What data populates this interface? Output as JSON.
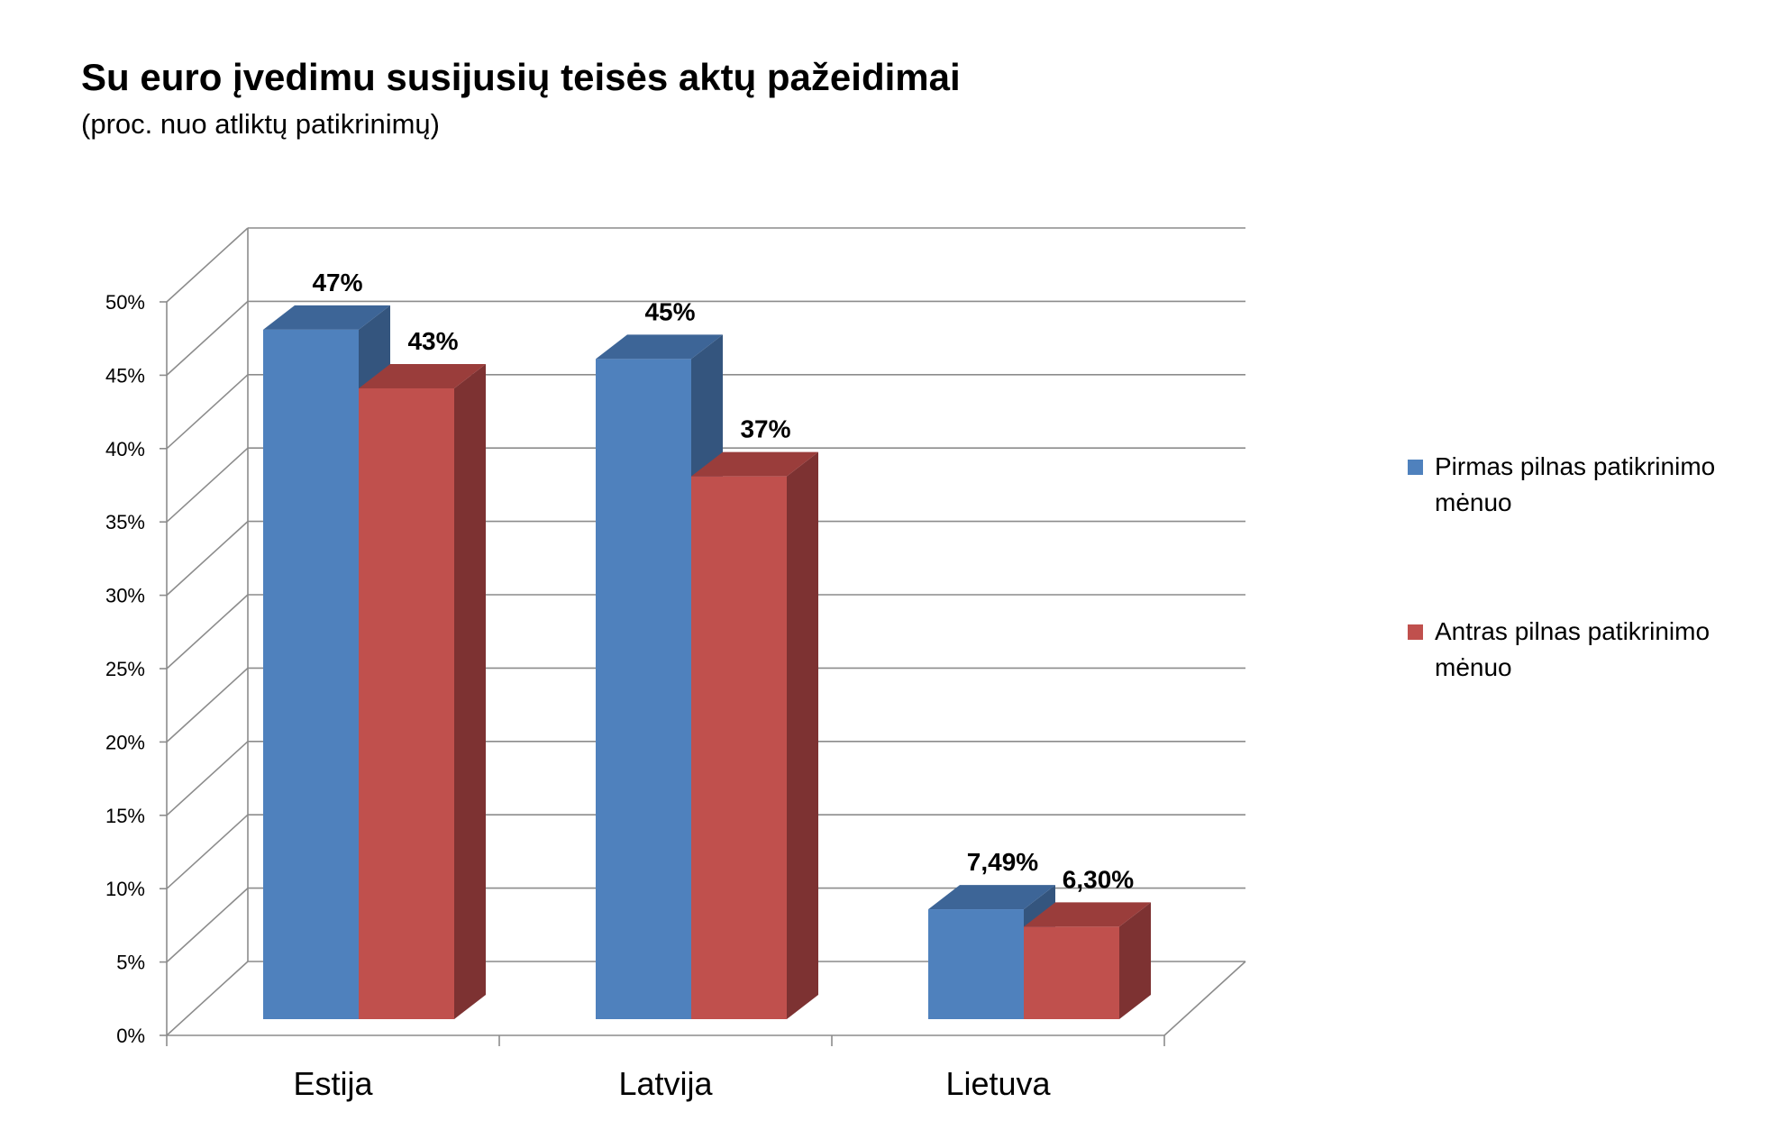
{
  "chart_data": {
    "type": "bar",
    "title": "Su euro įvedimu susijusių teisės aktų pažeidimai",
    "subtitle": "(proc. nuo atliktų patikrinimų)",
    "categories": [
      "Estija",
      "Latvija",
      "Lietuva"
    ],
    "series": [
      {
        "name": "Pirmas pilnas patikrinimo mėnuo",
        "values": [
          47,
          45,
          7.49
        ],
        "labels": [
          "47%",
          "45%",
          "7,49%"
        ],
        "color": "#4f81bd",
        "side_color": "#34557e",
        "top_color": "#3d6597"
      },
      {
        "name": "Antras pilnas patikrinimo mėnuo",
        "values": [
          43,
          37,
          6.3
        ],
        "labels": [
          "43%",
          "37%",
          "6,30%"
        ],
        "color": "#c0504d",
        "side_color": "#7d3232",
        "top_color": "#9a3d3b"
      }
    ],
    "yticks": [
      "0%",
      "5%",
      "10%",
      "15%",
      "20%",
      "25%",
      "30%",
      "35%",
      "40%",
      "45%",
      "50%"
    ],
    "ylim": [
      0,
      50
    ],
    "grid": true,
    "legend_position": "right",
    "three_d": true
  }
}
